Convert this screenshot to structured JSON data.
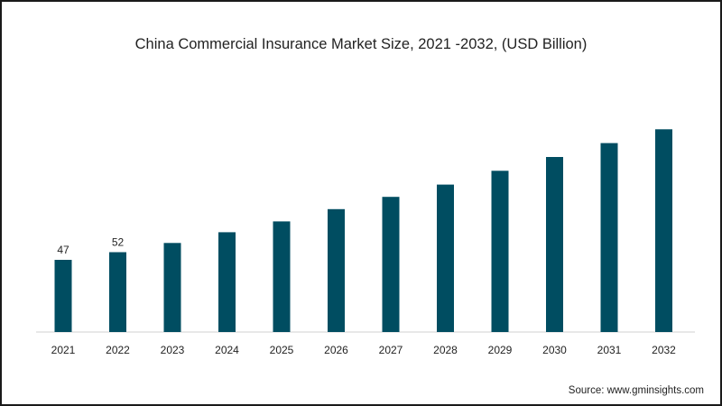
{
  "chart_data": {
    "type": "bar",
    "title": "China Commercial Insurance Market Size, 2021 -2032, (USD Billion)",
    "xlabel": "",
    "ylabel": "",
    "categories": [
      "2021",
      "2022",
      "2023",
      "2024",
      "2025",
      "2026",
      "2027",
      "2028",
      "2029",
      "2030",
      "2031",
      "2032"
    ],
    "values": [
      47,
      52,
      58,
      65,
      72,
      80,
      88,
      96,
      105,
      114,
      123,
      132
    ],
    "data_labels": [
      "47",
      "52",
      "",
      "",
      "",
      "",
      "",
      "",
      "",
      "",
      "",
      ""
    ],
    "ylim": [
      0,
      140
    ],
    "grid": false,
    "legend": "none",
    "bar_color": "#004d61"
  },
  "source": "Source: www.gminsights.com"
}
